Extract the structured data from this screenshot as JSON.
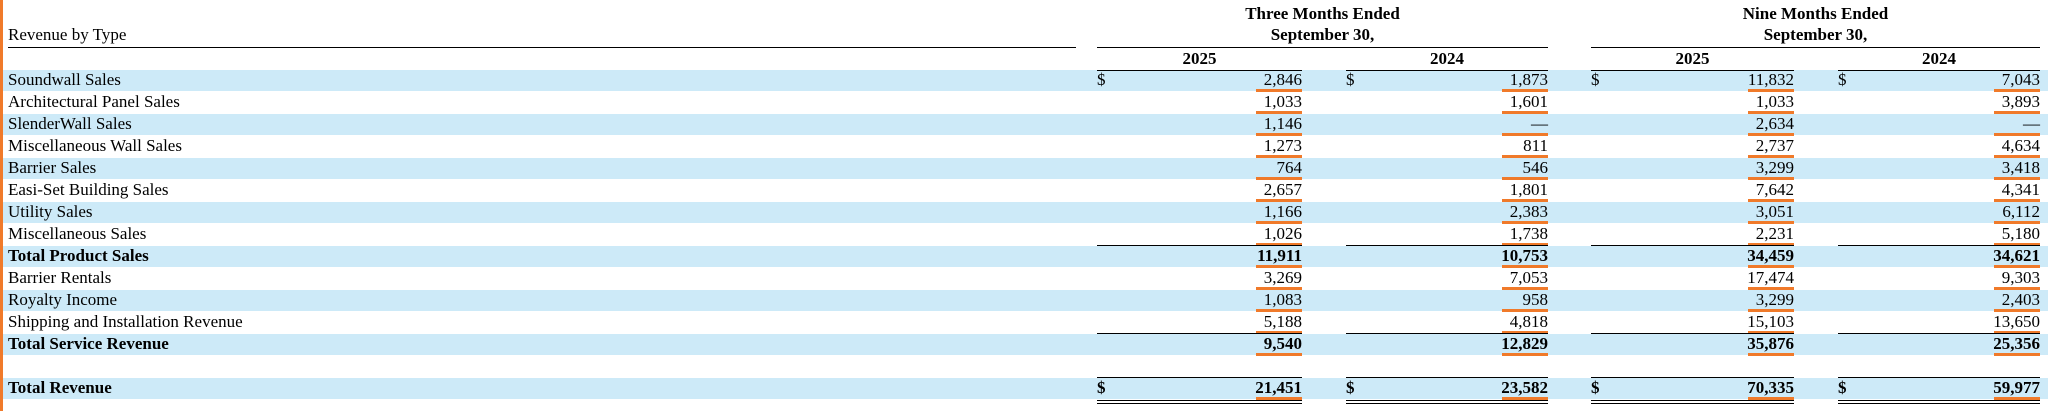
{
  "table": {
    "title": "Revenue by Type",
    "currency": "$",
    "groups": [
      {
        "title": [
          "Three Months Ended",
          "September 30,"
        ],
        "years": [
          "2025",
          "2024"
        ]
      },
      {
        "title": [
          "Nine Months Ended",
          "September 30,"
        ],
        "years": [
          "2025",
          "2024"
        ]
      }
    ],
    "rows": [
      {
        "label": "Soundwall Sales",
        "values": [
          "2,846",
          "1,873",
          "11,832",
          "7,043"
        ],
        "currency": true
      },
      {
        "label": "Architectural Panel Sales",
        "values": [
          "1,033",
          "1,601",
          "1,033",
          "3,893"
        ]
      },
      {
        "label": "SlenderWall Sales",
        "values": [
          "1,146",
          "—",
          "2,634",
          "—"
        ]
      },
      {
        "label": "Miscellaneous Wall Sales",
        "values": [
          "1,273",
          "811",
          "2,737",
          "4,634"
        ]
      },
      {
        "label": "Barrier Sales",
        "values": [
          "764",
          "546",
          "3,299",
          "3,418"
        ]
      },
      {
        "label": "Easi-Set Building Sales",
        "values": [
          "2,657",
          "1,801",
          "7,642",
          "4,341"
        ]
      },
      {
        "label": "Utility Sales",
        "values": [
          "1,166",
          "2,383",
          "3,051",
          "6,112"
        ]
      },
      {
        "label": "Miscellaneous Sales",
        "values": [
          "1,026",
          "1,738",
          "2,231",
          "5,180"
        ]
      },
      {
        "label": "Total Product Sales",
        "values": [
          "11,911",
          "10,753",
          "34,459",
          "34,621"
        ],
        "total": true
      },
      {
        "label": "Barrier Rentals",
        "values": [
          "3,269",
          "7,053",
          "17,474",
          "9,303"
        ]
      },
      {
        "label": "Royalty Income",
        "values": [
          "1,083",
          "958",
          "3,299",
          "2,403"
        ]
      },
      {
        "label": "Shipping and Installation Revenue",
        "values": [
          "5,188",
          "4,818",
          "15,103",
          "13,650"
        ]
      },
      {
        "label": "Total Service Revenue",
        "values": [
          "9,540",
          "12,829",
          "35,876",
          "25,356"
        ],
        "total": true
      },
      null,
      {
        "label": "Total Revenue",
        "values": [
          "21,451",
          "23,582",
          "70,335",
          "59,977"
        ],
        "total": true,
        "currency": true,
        "final": true
      }
    ]
  }
}
